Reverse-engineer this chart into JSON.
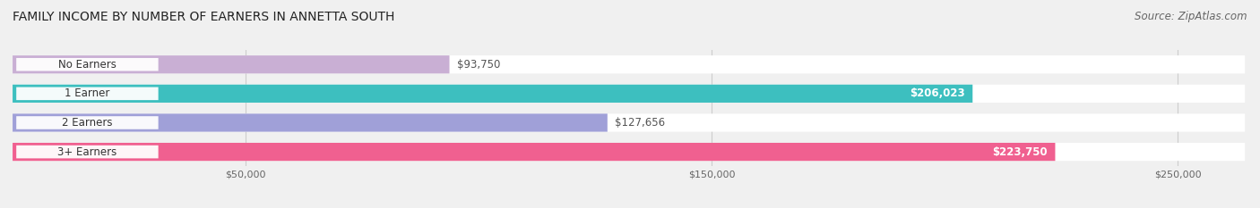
{
  "title": "FAMILY INCOME BY NUMBER OF EARNERS IN ANNETTA SOUTH",
  "source": "Source: ZipAtlas.com",
  "categories": [
    "No Earners",
    "1 Earner",
    "2 Earners",
    "3+ Earners"
  ],
  "values": [
    93750,
    206023,
    127656,
    223750
  ],
  "bar_colors": [
    "#c9afd4",
    "#3dbfbf",
    "#a0a0d8",
    "#f06090"
  ],
  "value_labels": [
    "$93,750",
    "$206,023",
    "$127,656",
    "$223,750"
  ],
  "label_inside": [
    false,
    true,
    false,
    true
  ],
  "x_ticks": [
    50000,
    150000,
    250000
  ],
  "x_tick_labels": [
    "$50,000",
    "$150,000",
    "$250,000"
  ],
  "xlim": [
    0,
    265000
  ],
  "background_color": "#f0f0f0",
  "bar_bg_color": "#ffffff",
  "title_fontsize": 10,
  "source_fontsize": 8.5,
  "bar_label_fontsize": 8.5,
  "category_fontsize": 8.5
}
